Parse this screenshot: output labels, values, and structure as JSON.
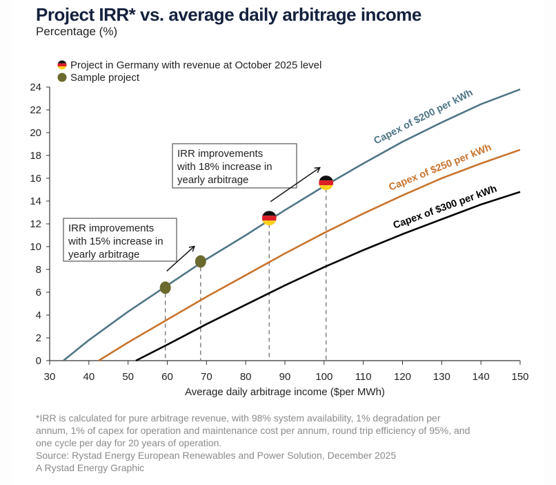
{
  "header": {
    "title": "Project IRR* vs. average daily arbitrage income",
    "subtitle": "Percentage (%)"
  },
  "footnote": {
    "lines": [
      "*IRR is calculated for pure arbitrage revenue, with 98% system availability, 1% degradation per",
      "annum, 1% of capex for operation and maintenance cost per annum, round trip efficiency of 95%, and",
      "one cycle per day for 20 years of operation."
    ],
    "source": "Source: Rystad Energy European Renewables and Power Solution, December 2025",
    "credit": "A Rystad Energy Graphic"
  },
  "chart_data": {
    "type": "line",
    "title": "Project IRR* vs. average daily arbitrage income",
    "subtitle": "Percentage (%)",
    "xlabel": "Average daily arbitrage income ($per MWh)",
    "ylabel": "",
    "xlim": [
      30,
      150
    ],
    "ylim": [
      0,
      24
    ],
    "x_ticks": [
      30,
      40,
      50,
      60,
      70,
      80,
      90,
      100,
      110,
      120,
      130,
      140,
      150
    ],
    "y_ticks": [
      0,
      2,
      4,
      6,
      8,
      10,
      12,
      14,
      16,
      18,
      20,
      22,
      24
    ],
    "grid": false,
    "legend": {
      "placement": "top-left",
      "entries": [
        {
          "label": "Project in Germany with revenue at October 2025 level",
          "marker": "germany-flag"
        },
        {
          "label": "Sample project",
          "marker": "olive-dot",
          "color": "#6b6a2e"
        }
      ]
    },
    "series": [
      {
        "name": "Capex of $200 per kWh",
        "color": "#4f7585",
        "x": [
          33.5,
          40,
          50,
          60,
          70,
          80,
          90,
          100,
          110,
          120,
          130,
          140,
          150
        ],
        "y": [
          0,
          1.8,
          4.3,
          6.6,
          8.9,
          11.0,
          13.2,
          15.3,
          17.3,
          19.2,
          20.9,
          22.5,
          23.8
        ]
      },
      {
        "name": "Capex of $250 per kWh",
        "color": "#c8732c",
        "x": [
          42.5,
          50,
          60,
          70,
          80,
          90,
          100,
          110,
          120,
          130,
          140,
          150
        ],
        "y": [
          0,
          1.6,
          3.6,
          5.6,
          7.5,
          9.4,
          11.2,
          12.9,
          14.5,
          16.0,
          17.3,
          18.5
        ]
      },
      {
        "name": "Capex of $300 per kWh",
        "color": "#000000",
        "x": [
          52,
          60,
          70,
          80,
          90,
          100,
          110,
          120,
          130,
          140,
          150
        ],
        "y": [
          0,
          1.4,
          3.2,
          4.9,
          6.6,
          8.2,
          9.7,
          11.1,
          12.4,
          13.7,
          14.8
        ]
      }
    ],
    "points": [
      {
        "type": "sample",
        "x": 59.5,
        "y": 6.4
      },
      {
        "type": "sample",
        "x": 68.5,
        "y": 8.7
      },
      {
        "type": "germany",
        "x": 86,
        "y": 12.5
      },
      {
        "type": "germany",
        "x": 100.5,
        "y": 15.6
      }
    ],
    "annotations": [
      {
        "lines": [
          "IRR improvements",
          "with 15% increase in",
          "yearly arbitrage"
        ],
        "from_point": 0,
        "to_point": 1
      },
      {
        "lines": [
          "IRR improvements",
          "with 18% increase in",
          "yearly arbitrage"
        ],
        "from_point": 2,
        "to_point": 3
      }
    ]
  }
}
